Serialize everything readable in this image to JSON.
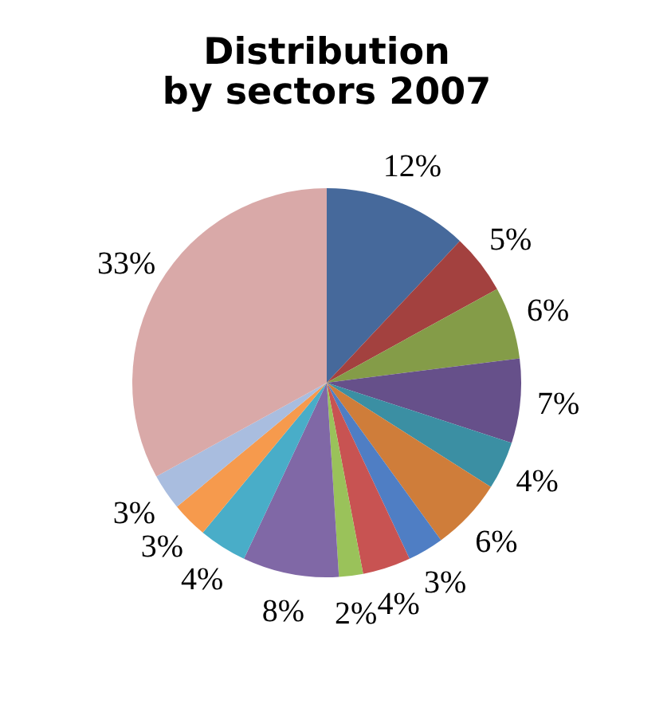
{
  "chart_data": {
    "type": "pie",
    "title": "Distribution by sectors 2007",
    "categories": [
      null,
      null,
      null,
      null,
      null,
      null,
      null,
      null,
      null,
      null,
      null,
      null,
      null,
      null
    ],
    "values": [
      12,
      5,
      6,
      7,
      4,
      6,
      3,
      4,
      2,
      8,
      4,
      3,
      3,
      33
    ],
    "value_labels": [
      "12%",
      "5%",
      "6%",
      "7%",
      "4%",
      "6%",
      "3%",
      "4%",
      "2%",
      "8%",
      "4%",
      "3%",
      "3%",
      "33%"
    ],
    "colors": [
      "#46699b",
      "#a3413f",
      "#849c48",
      "#66508a",
      "#3b8fa3",
      "#cf7d3a",
      "#4f7ec4",
      "#c85352",
      "#9ac25a",
      "#8068a6",
      "#49adc8",
      "#f69a4d",
      "#a9bddf",
      "#d9a9a8"
    ],
    "legend": false
  }
}
